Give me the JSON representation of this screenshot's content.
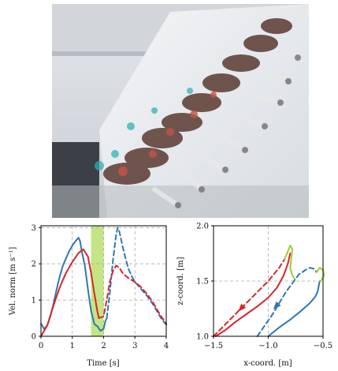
{
  "photo": {
    "icon": "composite-drone-flight-photo"
  },
  "chart_data": [
    {
      "type": "line",
      "xlabel": "Time [s]",
      "ylabel": "Vel. norm [m s⁻¹]",
      "xlim": [
        0,
        4
      ],
      "ylim": [
        0,
        3.05
      ],
      "xticks": [
        "0",
        "1",
        "2",
        "3",
        "4"
      ],
      "yticks": [
        "0",
        "1",
        "2",
        "3"
      ],
      "grid": true,
      "highlight": {
        "x_range": [
          1.6,
          2.0
        ],
        "color": "#b8e070"
      },
      "series": [
        {
          "style": "solid",
          "color": "#2e77b4",
          "x": [
            0.0,
            0.1,
            0.2,
            0.3,
            0.4,
            0.5,
            0.6,
            0.7,
            0.8,
            0.9,
            1.0,
            1.1,
            1.2,
            1.25,
            1.3,
            1.4,
            1.5,
            1.6,
            1.7,
            1.75,
            1.8,
            1.9,
            2.0,
            2.05,
            2.1
          ],
          "y": [
            0.35,
            0.2,
            0.3,
            0.55,
            0.9,
            1.3,
            1.65,
            1.95,
            2.15,
            2.35,
            2.5,
            2.62,
            2.72,
            2.62,
            2.35,
            1.95,
            1.3,
            0.7,
            0.35,
            0.3,
            0.28,
            0.15,
            0.2,
            0.4,
            0.5
          ]
        },
        {
          "style": "dashed",
          "color": "#2e77b4",
          "x": [
            2.1,
            2.2,
            2.3,
            2.4,
            2.45,
            2.5,
            2.6,
            2.7,
            2.8,
            2.9,
            3.0,
            3.2,
            3.4,
            3.6,
            3.8,
            3.9,
            4.0
          ],
          "y": [
            0.5,
            1.2,
            2.1,
            2.8,
            3.0,
            2.9,
            2.5,
            2.15,
            1.85,
            1.65,
            1.5,
            1.3,
            1.1,
            0.85,
            0.55,
            0.42,
            0.32
          ]
        },
        {
          "style": "solid",
          "color": "#d62728",
          "x": [
            0.0,
            0.2,
            0.4,
            0.6,
            0.8,
            1.0,
            1.2,
            1.35,
            1.5,
            1.6,
            1.7,
            1.8,
            1.85
          ],
          "y": [
            0.0,
            0.3,
            0.85,
            1.35,
            1.75,
            2.05,
            2.3,
            2.4,
            2.2,
            1.75,
            1.2,
            0.7,
            0.5
          ]
        },
        {
          "style": "dashed",
          "color": "#d62728",
          "x": [
            1.85,
            2.0,
            2.1,
            2.2,
            2.3,
            2.4,
            2.5,
            2.6,
            2.8,
            3.0,
            3.2,
            3.4,
            3.6,
            3.8,
            4.0
          ],
          "y": [
            0.5,
            0.55,
            1.0,
            1.5,
            1.8,
            1.95,
            1.9,
            1.75,
            1.6,
            1.5,
            1.35,
            1.15,
            0.9,
            0.6,
            0.35
          ]
        }
      ]
    },
    {
      "type": "line",
      "xlabel": "x-coord. [m]",
      "ylabel": "z-coord. [m]",
      "xlim": [
        -1.5,
        -0.5
      ],
      "ylim": [
        1.0,
        2.0
      ],
      "xticks": [
        "−1.5",
        "−1.0",
        "−0.5"
      ],
      "yticks": [
        "1.0",
        "1.5",
        "2.0"
      ],
      "grid": true,
      "series": [
        {
          "style": "dashed",
          "color": "#d62728",
          "x": [
            -1.5,
            -1.4,
            -1.3,
            -1.2,
            -1.1,
            -1.0,
            -0.9,
            -0.85
          ],
          "y": [
            1.0,
            1.1,
            1.2,
            1.3,
            1.4,
            1.5,
            1.62,
            1.7
          ],
          "arrow_at": [
            -1.25,
            1.25
          ]
        },
        {
          "style": "solid",
          "color": "#d62728",
          "x": [
            -1.48,
            -1.4,
            -1.3,
            -1.2,
            -1.1,
            -1.0,
            -0.92,
            -0.86,
            -0.82,
            -0.8
          ],
          "y": [
            1.0,
            1.05,
            1.13,
            1.2,
            1.27,
            1.35,
            1.44,
            1.55,
            1.66,
            1.75
          ]
        },
        {
          "style": "solid",
          "color": "#9ccc3a",
          "x": [
            -0.85,
            -0.8,
            -0.78,
            -0.8,
            -0.78,
            -0.76
          ],
          "y": [
            1.7,
            1.82,
            1.79,
            1.62,
            1.55,
            1.52
          ]
        },
        {
          "style": "dashed",
          "color": "#2e77b4",
          "x": [
            -1.1,
            -1.03,
            -0.96,
            -0.9,
            -0.84,
            -0.78,
            -0.72,
            -0.66,
            -0.62,
            -0.58,
            -0.56
          ],
          "y": [
            1.0,
            1.1,
            1.2,
            1.3,
            1.4,
            1.48,
            1.56,
            1.6,
            1.62,
            1.61,
            1.58
          ]
        },
        {
          "style": "solid",
          "color": "#2e77b4",
          "x": [
            -1.0,
            -0.9,
            -0.8,
            -0.7,
            -0.62,
            -0.57,
            -0.55,
            -0.54,
            -0.53
          ],
          "y": [
            1.0,
            1.08,
            1.15,
            1.23,
            1.3,
            1.36,
            1.4,
            1.45,
            1.5
          ],
          "arrow_at": [
            -0.93,
            1.27
          ]
        },
        {
          "style": "solid",
          "color": "#9ccc3a",
          "x": [
            -0.56,
            -0.53,
            -0.5,
            -0.49,
            -0.52,
            -0.53
          ],
          "y": [
            1.58,
            1.62,
            1.6,
            1.55,
            1.5,
            1.5
          ]
        }
      ]
    }
  ]
}
